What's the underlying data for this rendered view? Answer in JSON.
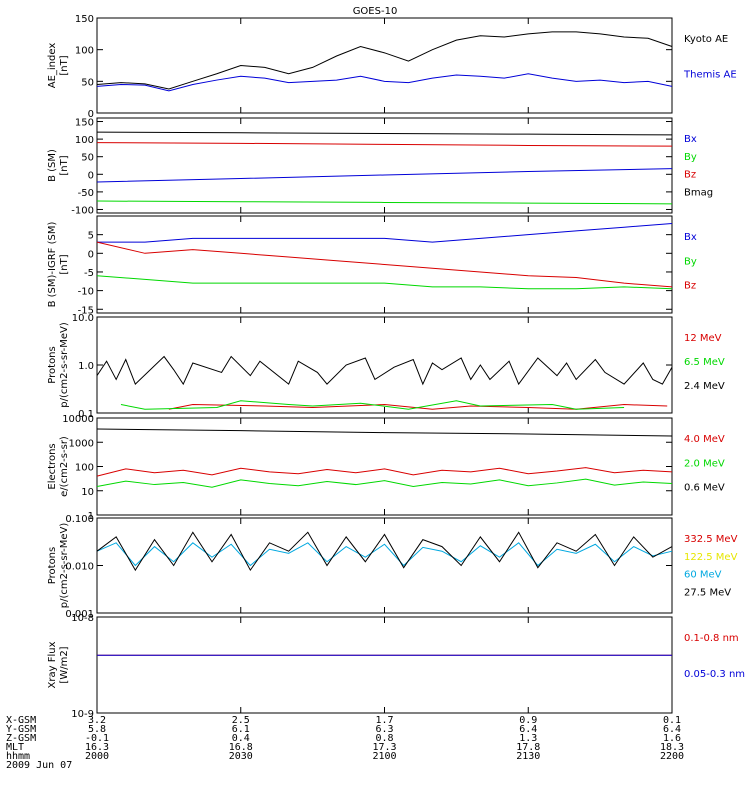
{
  "title": "GOES-10",
  "colors": {
    "black": "#000000",
    "blue": "#0000d8",
    "red": "#d80000",
    "green": "#00d800",
    "yellow": "#e6e600",
    "cyan": "#00a8e0"
  },
  "x_ticks": [
    "2000",
    "2030",
    "2100",
    "2130",
    "2200"
  ],
  "orbit": {
    "row_labels": [
      "X-GSM",
      "Y-GSM",
      "Z-GSM",
      "MLT",
      "hhmm",
      "2009 Jun 07"
    ],
    "columns": [
      [
        "3.2",
        "5.8",
        "-0.1",
        "16.3",
        "2000"
      ],
      [
        "2.5",
        "6.1",
        "0.4",
        "16.8",
        "2030"
      ],
      [
        "1.7",
        "6.3",
        "0.8",
        "17.3",
        "2100"
      ],
      [
        "0.9",
        "6.4",
        "1.3",
        "17.8",
        "2130"
      ],
      [
        "0.1",
        "6.4",
        "1.6",
        "18.3",
        "2200"
      ]
    ]
  },
  "chart_data": [
    {
      "type": "line",
      "ylabel": "AE_index",
      "yunit": "[nT]",
      "ylim": [
        0,
        150
      ],
      "yticks": [
        "0",
        "50",
        "100",
        "150"
      ],
      "series": [
        {
          "name": "Kyoto AE",
          "color": "#000000",
          "x": [
            0,
            5,
            10,
            15,
            20,
            25,
            30,
            35,
            40,
            45,
            50,
            55,
            60,
            65,
            70,
            75,
            80,
            85,
            90,
            95,
            100,
            105,
            110,
            115,
            120
          ],
          "values": [
            45,
            48,
            46,
            38,
            50,
            62,
            75,
            72,
            62,
            72,
            90,
            105,
            95,
            82,
            100,
            115,
            122,
            120,
            125,
            128,
            128,
            125,
            120,
            118,
            105
          ]
        },
        {
          "name": "Themis AE",
          "color": "#0000d8",
          "x": [
            0,
            5,
            10,
            15,
            20,
            25,
            30,
            35,
            40,
            45,
            50,
            55,
            60,
            65,
            70,
            75,
            80,
            85,
            90,
            95,
            100,
            105,
            110,
            115,
            120
          ],
          "values": [
            42,
            45,
            44,
            35,
            45,
            52,
            58,
            55,
            48,
            50,
            52,
            58,
            50,
            48,
            55,
            60,
            58,
            55,
            62,
            55,
            50,
            52,
            48,
            50,
            42
          ]
        }
      ]
    },
    {
      "type": "line",
      "ylabel": "B (SM)",
      "yunit": "[nT]",
      "ylim": [
        -110,
        160
      ],
      "yticks": [
        "-100",
        "-50",
        "0",
        "50",
        "100",
        "150"
      ],
      "series": [
        {
          "name": "Bx",
          "color": "#0000d8",
          "x": [
            0,
            30,
            60,
            90,
            120
          ],
          "values": [
            -22,
            -12,
            -2,
            8,
            16
          ]
        },
        {
          "name": "By",
          "color": "#00d800",
          "x": [
            0,
            30,
            60,
            90,
            120
          ],
          "values": [
            -76,
            -78,
            -80,
            -82,
            -84
          ]
        },
        {
          "name": "Bz",
          "color": "#d80000",
          "x": [
            0,
            30,
            60,
            90,
            120
          ],
          "values": [
            90,
            88,
            85,
            82,
            80
          ]
        },
        {
          "name": "Bmag",
          "color": "#000000",
          "x": [
            0,
            30,
            60,
            90,
            120
          ],
          "values": [
            120,
            118,
            116,
            114,
            112
          ]
        }
      ]
    },
    {
      "type": "line",
      "ylabel": "B (SM)-IGRF (SM)",
      "yunit": "[nT]",
      "ylim": [
        -16,
        10
      ],
      "yticks": [
        "-15",
        "-10",
        "-5",
        "0",
        "5"
      ],
      "series": [
        {
          "name": "Bx",
          "color": "#0000d8",
          "x": [
            0,
            10,
            20,
            30,
            40,
            50,
            60,
            70,
            80,
            90,
            100,
            110,
            120
          ],
          "values": [
            3,
            3,
            4,
            4,
            4,
            4,
            4,
            3,
            4,
            5,
            6,
            7,
            8
          ]
        },
        {
          "name": "By",
          "color": "#00d800",
          "x": [
            0,
            10,
            20,
            30,
            40,
            50,
            60,
            70,
            80,
            90,
            100,
            110,
            120
          ],
          "values": [
            -6,
            -7,
            -8,
            -8,
            -8,
            -8,
            -8,
            -9,
            -9,
            -9.5,
            -9.5,
            -9,
            -9.5
          ]
        },
        {
          "name": "Bz",
          "color": "#d80000",
          "x": [
            0,
            10,
            20,
            30,
            40,
            50,
            60,
            70,
            80,
            90,
            100,
            110,
            120
          ],
          "values": [
            3,
            0,
            1,
            0,
            -1,
            -2,
            -3,
            -4,
            -5,
            -6,
            -6.5,
            -8,
            -9
          ]
        }
      ]
    },
    {
      "type": "line",
      "ylabel": "Protons",
      "yunit": "p/(cm2-s-sr-MeV)",
      "log": true,
      "ylim": [
        0.1,
        10
      ],
      "yticks": [
        "0.1",
        "1.0",
        "10.0"
      ],
      "series": [
        {
          "name": "12 MeV",
          "color": "#d80000",
          "x": [
            15,
            20,
            35,
            45,
            60,
            70,
            78,
            90,
            100,
            110,
            119
          ],
          "values": [
            0.12,
            0.15,
            0.14,
            0.13,
            0.15,
            0.12,
            0.14,
            0.13,
            0.12,
            0.15,
            0.14
          ]
        },
        {
          "name": "6.5 MeV",
          "color": "#00d800",
          "x": [
            5,
            10,
            25,
            30,
            40,
            45,
            55,
            65,
            75,
            80,
            95,
            100,
            110
          ],
          "values": [
            0.15,
            0.12,
            0.13,
            0.18,
            0.15,
            0.14,
            0.16,
            0.12,
            0.18,
            0.14,
            0.15,
            0.12,
            0.13
          ]
        },
        {
          "name": "2.4 MeV",
          "color": "#000000",
          "x": [
            0,
            2,
            4,
            6,
            8,
            14,
            16,
            18,
            20,
            26,
            28,
            32,
            34,
            40,
            42,
            46,
            48,
            52,
            56,
            58,
            62,
            66,
            68,
            70,
            72,
            76,
            78,
            80,
            82,
            86,
            88,
            92,
            96,
            98,
            100,
            104,
            106,
            110,
            114,
            116,
            118,
            120
          ],
          "values": [
            0.6,
            1.2,
            0.5,
            1.3,
            0.4,
            1.5,
            0.8,
            0.4,
            1.1,
            0.7,
            1.5,
            0.6,
            1.2,
            0.4,
            1.2,
            0.7,
            0.4,
            1.0,
            1.4,
            0.5,
            0.9,
            1.3,
            0.4,
            1.1,
            0.8,
            1.4,
            0.5,
            1.0,
            0.5,
            1.2,
            0.4,
            1.4,
            0.6,
            1.1,
            0.5,
            1.3,
            0.7,
            0.4,
            1.1,
            0.5,
            0.4,
            0.9
          ]
        }
      ]
    },
    {
      "type": "line",
      "ylabel": "Electrons",
      "yunit": "e/(cm2-s-sr)",
      "log": true,
      "ylim": [
        1,
        10000
      ],
      "yticks": [
        "1",
        "10",
        "100",
        "1000",
        "10000"
      ],
      "series": [
        {
          "name": "4.0 MeV",
          "color": "#d80000",
          "x": [
            0,
            6,
            12,
            18,
            24,
            30,
            36,
            42,
            48,
            54,
            60,
            66,
            72,
            78,
            84,
            90,
            96,
            102,
            108,
            114,
            120
          ],
          "values": [
            40,
            80,
            55,
            70,
            45,
            85,
            60,
            50,
            75,
            55,
            80,
            45,
            70,
            60,
            85,
            50,
            65,
            90,
            55,
            70,
            60
          ]
        },
        {
          "name": "2.0 MeV",
          "color": "#00d800",
          "x": [
            0,
            6,
            12,
            18,
            24,
            30,
            36,
            42,
            48,
            54,
            60,
            66,
            72,
            78,
            84,
            90,
            96,
            102,
            108,
            114,
            120
          ],
          "values": [
            15,
            25,
            18,
            22,
            14,
            28,
            20,
            16,
            24,
            18,
            26,
            15,
            22,
            19,
            28,
            16,
            21,
            30,
            17,
            23,
            20
          ]
        },
        {
          "name": "0.6 MeV",
          "color": "#000000",
          "x": [
            0,
            30,
            60,
            90,
            120
          ],
          "values": [
            3500,
            3000,
            2500,
            2200,
            1800
          ]
        }
      ]
    },
    {
      "type": "line",
      "ylabel": "Protons",
      "yunit": "p/(cm2-s-sr-MeV)",
      "log": true,
      "ylim": [
        0.001,
        0.1
      ],
      "yticks": [
        "0.001",
        "0.010",
        "0.100"
      ],
      "series": [
        {
          "name": "332.5 MeV",
          "color": "#d80000",
          "x": [],
          "values": []
        },
        {
          "name": "122.5 MeV",
          "color": "#e6e600",
          "x": [],
          "values": []
        },
        {
          "name": "60 MeV",
          "color": "#00a8e0",
          "x": [
            0,
            4,
            8,
            12,
            16,
            20,
            24,
            28,
            32,
            36,
            40,
            44,
            48,
            52,
            56,
            60,
            64,
            68,
            72,
            76,
            80,
            84,
            88,
            92,
            96,
            100,
            104,
            108,
            112,
            116,
            120
          ],
          "values": [
            0.02,
            0.03,
            0.01,
            0.025,
            0.012,
            0.03,
            0.015,
            0.028,
            0.01,
            0.022,
            0.018,
            0.03,
            0.012,
            0.025,
            0.015,
            0.028,
            0.01,
            0.024,
            0.02,
            0.012,
            0.026,
            0.015,
            0.03,
            0.01,
            0.022,
            0.018,
            0.028,
            0.012,
            0.025,
            0.016,
            0.02
          ]
        },
        {
          "name": "27.5 MeV",
          "color": "#000000",
          "x": [
            0,
            4,
            8,
            12,
            16,
            20,
            24,
            28,
            32,
            36,
            40,
            44,
            48,
            52,
            56,
            60,
            64,
            68,
            72,
            76,
            80,
            84,
            88,
            92,
            96,
            100,
            104,
            108,
            112,
            116,
            120
          ],
          "values": [
            0.02,
            0.04,
            0.008,
            0.035,
            0.01,
            0.05,
            0.012,
            0.045,
            0.008,
            0.03,
            0.02,
            0.05,
            0.01,
            0.04,
            0.012,
            0.045,
            0.009,
            0.035,
            0.025,
            0.01,
            0.04,
            0.012,
            0.05,
            0.009,
            0.03,
            0.02,
            0.045,
            0.01,
            0.04,
            0.015,
            0.025
          ]
        }
      ]
    },
    {
      "type": "line",
      "ylabel": "Xray Flux",
      "yunit": "[W/m2]",
      "log": true,
      "ylim": [
        1e-09,
        1e-08
      ],
      "yticks": [
        "10-9",
        "10-8"
      ],
      "series": [
        {
          "name": "0.1-0.8 nm",
          "color": "#d80000",
          "x": [
            0,
            120
          ],
          "values": [
            4e-09,
            4e-09
          ]
        },
        {
          "name": "0.05-0.3 nm",
          "color": "#0000d8",
          "x": [
            0,
            120
          ],
          "values": [
            4e-09,
            4e-09
          ]
        }
      ]
    }
  ]
}
